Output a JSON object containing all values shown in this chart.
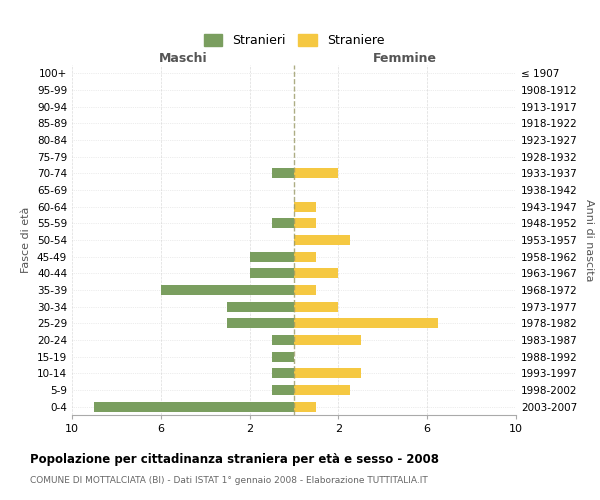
{
  "age_groups": [
    "100+",
    "95-99",
    "90-94",
    "85-89",
    "80-84",
    "75-79",
    "70-74",
    "65-69",
    "60-64",
    "55-59",
    "50-54",
    "45-49",
    "40-44",
    "35-39",
    "30-34",
    "25-29",
    "20-24",
    "15-19",
    "10-14",
    "5-9",
    "0-4"
  ],
  "birth_years": [
    "≤ 1907",
    "1908-1912",
    "1913-1917",
    "1918-1922",
    "1923-1927",
    "1928-1932",
    "1933-1937",
    "1938-1942",
    "1943-1947",
    "1948-1952",
    "1953-1957",
    "1958-1962",
    "1963-1967",
    "1968-1972",
    "1973-1977",
    "1978-1982",
    "1983-1987",
    "1988-1992",
    "1993-1997",
    "1998-2002",
    "2003-2007"
  ],
  "stranieri": [
    0,
    0,
    0,
    0,
    0,
    0,
    1,
    0,
    0,
    1,
    0,
    2,
    2,
    6,
    3,
    3,
    1,
    1,
    1,
    1,
    9
  ],
  "straniere": [
    0,
    0,
    0,
    0,
    0,
    0,
    2,
    0,
    1,
    1,
    2.5,
    1,
    2,
    1,
    2,
    6.5,
    3,
    0,
    3,
    2.5,
    1
  ],
  "color_stranieri": "#7A9E5F",
  "color_straniere": "#F5C842",
  "title": "Popolazione per cittadinanza straniera per età e sesso - 2008",
  "subtitle": "COMUNE DI MOTTALCIATA (BI) - Dati ISTAT 1° gennaio 2008 - Elaborazione TUTTITALIA.IT",
  "xlabel_left": "Maschi",
  "xlabel_right": "Femmine",
  "ylabel_left": "Fasce di età",
  "ylabel_right": "Anni di nascita",
  "legend_stranieri": "Stranieri",
  "legend_straniere": "Straniere",
  "bg_color": "#FFFFFF",
  "grid_color": "#CCCCCC"
}
